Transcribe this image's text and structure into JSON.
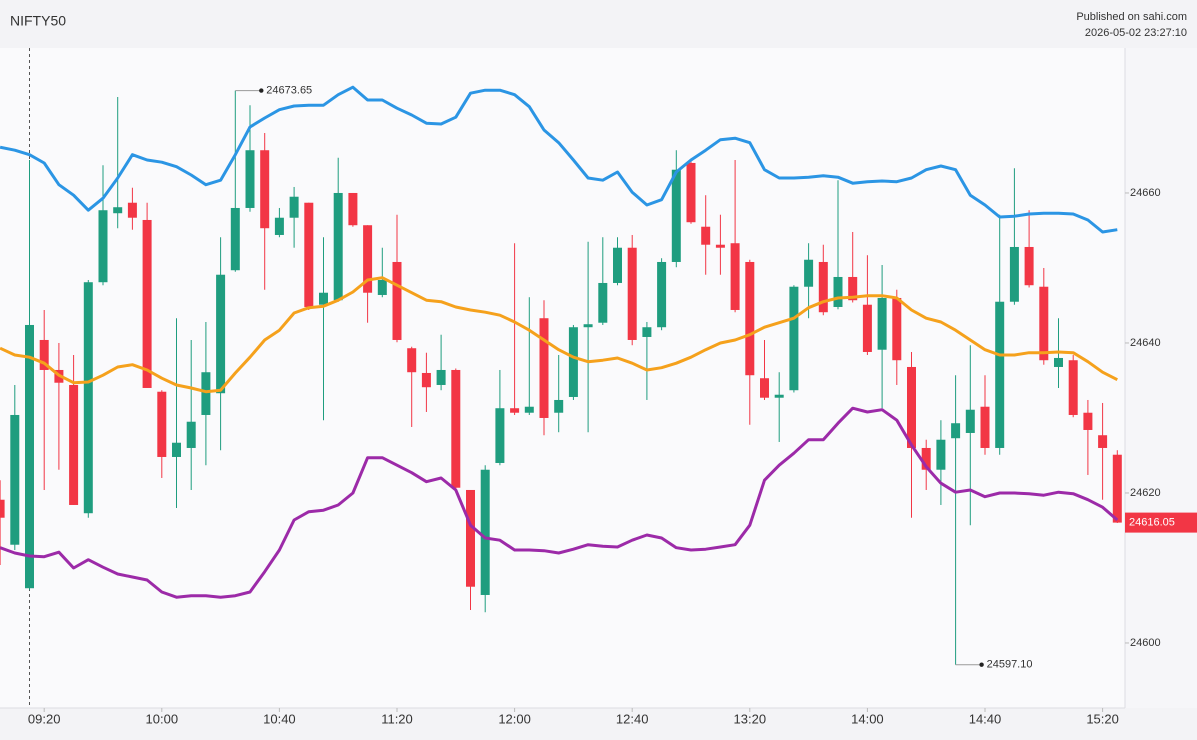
{
  "header": {
    "symbol": "NIFTY50",
    "publisher": "Published on sahi.com",
    "timestamp": "2026-05-02 23:27:10"
  },
  "chart_data": {
    "type": "candlestick",
    "categories": [
      null,
      null,
      null,
      "09:20",
      null,
      null,
      null,
      null,
      null,
      null,
      null,
      "10:00",
      null,
      null,
      null,
      null,
      null,
      null,
      null,
      "10:40",
      null,
      null,
      null,
      null,
      null,
      null,
      null,
      "11:20",
      null,
      null,
      null,
      null,
      null,
      null,
      null,
      "12:00",
      null,
      null,
      null,
      null,
      null,
      null,
      null,
      "12:40",
      null,
      null,
      null,
      null,
      null,
      null,
      null,
      "13:20",
      null,
      null,
      null,
      null,
      null,
      null,
      null,
      "14:00",
      null,
      null,
      null,
      null,
      null,
      null,
      null,
      "14:40",
      null,
      null,
      null,
      null,
      null,
      null,
      null,
      "15:20",
      null
    ],
    "open": [
      24619.1,
      24613.1,
      24607.3,
      24640.4,
      24636.4,
      24634.4,
      24617.3,
      24648.1,
      24657.3,
      24658.7,
      24656.4,
      24633.5,
      24624.8,
      24626.0,
      24630.4,
      24633.3,
      24649.7,
      24658.0,
      24665.7,
      24654.4,
      24656.7,
      24658.7,
      24645.1,
      24645.7,
      24660.0,
      24655.7,
      24646.4,
      24650.8,
      24639.3,
      24636.0,
      24634.4,
      24636.4,
      24620.4,
      24606.4,
      24624.0,
      24631.3,
      24630.7,
      24643.3,
      24630.7,
      24632.8,
      24642.1,
      24642.7,
      24648.0,
      24652.7,
      24640.8,
      24642.1,
      24650.8,
      24664.0,
      24655.5,
      24653.1,
      24653.3,
      24650.8,
      24635.3,
      24632.7,
      24633.7,
      24647.5,
      24650.8,
      24644.8,
      24648.8,
      24645.1,
      24639.1,
      24646.0,
      24636.8,
      24626.0,
      24623.1,
      24627.3,
      24628.0,
      24631.5,
      24626.0,
      24645.5,
      24652.8,
      24647.5,
      24636.8,
      24637.7,
      24630.7,
      24627.7,
      24625.1
    ],
    "high": [
      24621.7,
      24634.4,
      24664.4,
      24644.4,
      24640.0,
      24638.4,
      24648.4,
      24663.7,
      24672.8,
      24660.7,
      24658.7,
      24633.7,
      24643.3,
      24640.4,
      24642.8,
      24654.1,
      24673.65,
      24671.7,
      24668.0,
      24658.0,
      24660.8,
      24658.7,
      24654.1,
      24664.7,
      24660.0,
      24655.7,
      24652.7,
      24657.1,
      24639.5,
      24638.7,
      24641.1,
      24636.6,
      24620.4,
      24623.7,
      24636.4,
      24653.3,
      24646.1,
      24645.7,
      24638.4,
      24642.4,
      24653.5,
      24654.1,
      24654.1,
      24654.4,
      24642.8,
      24651.3,
      24665.7,
      24664.4,
      24659.7,
      24657.1,
      24664.4,
      24651.1,
      24640.4,
      24636.1,
      24647.7,
      24653.3,
      24653.1,
      24661.7,
      24654.8,
      24651.7,
      24650.4,
      24647.1,
      24638.8,
      24627.1,
      24629.7,
      24635.7,
      24639.7,
      24635.7,
      24657.1,
      24663.3,
      24657.7,
      24650.0,
      24643.3,
      24638.4,
      24632.4,
      24632.0,
      24625.7
    ],
    "low": [
      24610.4,
      24612.4,
      24607.1,
      24620.4,
      24623.1,
      24618.4,
      24616.7,
      24647.7,
      24655.3,
      24655.1,
      24634.0,
      24622.0,
      24618.0,
      24620.4,
      24623.7,
      24625.7,
      24649.5,
      24657.5,
      24647.1,
      24654.1,
      24652.7,
      24644.4,
      24629.7,
      24645.5,
      24655.5,
      24642.7,
      24646.1,
      24640.1,
      24628.8,
      24630.8,
      24633.7,
      24620.4,
      24604.4,
      24604.1,
      24623.7,
      24630.4,
      24630.4,
      24627.7,
      24628.1,
      24632.4,
      24628.1,
      24642.4,
      24647.7,
      24639.7,
      24632.4,
      24641.7,
      24650.1,
      24655.9,
      24649.1,
      24649.1,
      24644.1,
      24629.1,
      24632.4,
      24626.8,
      24633.4,
      24643.3,
      24643.7,
      24644.5,
      24645.4,
      24638.4,
      24631.3,
      24634.4,
      24616.7,
      24620.4,
      24618.4,
      24597.1,
      24615.7,
      24625.1,
      24625.1,
      24645.1,
      24647.4,
      24637.1,
      24634.0,
      24630.1,
      24622.4,
      24619.1,
      24616.0
    ],
    "close": [
      24616.7,
      24630.4,
      24642.4,
      24636.4,
      24634.7,
      24618.4,
      24648.1,
      24657.7,
      24658.1,
      24656.7,
      24634.0,
      24624.8,
      24626.7,
      24629.5,
      24636.1,
      24649.1,
      24658.0,
      24665.7,
      24655.3,
      24656.7,
      24659.5,
      24644.8,
      24646.7,
      24660.0,
      24655.7,
      24646.7,
      24648.4,
      24640.4,
      24636.1,
      24634.1,
      24636.4,
      24620.7,
      24607.5,
      24623.1,
      24631.3,
      24630.7,
      24631.5,
      24630.0,
      24632.4,
      24642.1,
      24642.5,
      24648.0,
      24652.7,
      24640.4,
      24642.1,
      24650.8,
      24663.1,
      24656.1,
      24653.1,
      24652.7,
      24644.4,
      24635.7,
      24632.7,
      24633.1,
      24647.5,
      24651.1,
      24644.1,
      24648.8,
      24645.7,
      24638.8,
      24646.0,
      24637.7,
      24626.0,
      24623.1,
      24627.1,
      24629.3,
      24631.1,
      24626.0,
      24645.5,
      24652.8,
      24647.7,
      24637.7,
      24638.0,
      24630.4,
      24628.4,
      24626.0,
      24616.05
    ],
    "up_color": "#1f9d7f",
    "down_color": "#f23645",
    "series": [
      {
        "name": "Upper Band",
        "color": "#2b95e4",
        "values": [
          24666.1,
          24665.7,
          24665.1,
          24664.0,
          24661.1,
          24659.7,
          24657.7,
          24659.3,
          24662.0,
          24665.1,
          24664.4,
          24664.1,
          24663.5,
          24662.4,
          24661.1,
          24661.7,
          24665.1,
          24668.8,
          24670.0,
          24671.1,
          24671.6,
          24671.7,
          24671.7,
          24673.1,
          24674.1,
          24672.4,
          24672.4,
          24671.3,
          24670.4,
          24669.3,
          24669.2,
          24670.1,
          24673.3,
          24673.7,
          24673.7,
          24673.1,
          24671.5,
          24668.4,
          24666.7,
          24664.4,
          24662.0,
          24661.7,
          24662.8,
          24660.1,
          24658.4,
          24659.1,
          24662.8,
          24664.4,
          24665.7,
          24667.1,
          24667.3,
          24666.7,
          24663.1,
          24662.0,
          24662.0,
          24662.1,
          24662.3,
          24662.1,
          24661.3,
          24661.5,
          24661.6,
          24661.5,
          24662.0,
          24663.1,
          24663.6,
          24663.1,
          24659.7,
          24658.4,
          24656.8,
          24656.9,
          24657.2,
          24657.3,
          24657.3,
          24657.2,
          24656.4,
          24654.8,
          24655.1
        ]
      },
      {
        "name": "Middle Band",
        "color": "#f5a11c",
        "values": [
          24639.3,
          24638.4,
          24638.1,
          24637.3,
          24635.7,
          24634.7,
          24634.8,
          24635.7,
          24636.8,
          24637.1,
          24636.4,
          24635.3,
          24634.4,
          24634.0,
          24633.5,
          24633.7,
          24636.0,
          24638.1,
          24640.4,
          24641.7,
          24644.0,
          24644.7,
          24644.9,
          24645.7,
          24646.8,
          24648.4,
          24648.7,
          24647.7,
          24646.7,
          24645.7,
          24645.5,
          24644.8,
          24644.4,
          24644.1,
          24643.7,
          24642.8,
          24641.7,
          24640.4,
          24639.1,
          24638.1,
          24637.5,
          24637.7,
          24638.0,
          24637.3,
          24636.4,
          24636.7,
          24637.3,
          24638.1,
          24639.1,
          24640.0,
          24640.4,
          24641.1,
          24642.1,
          24642.7,
          24643.3,
          24644.7,
          24645.5,
          24646.0,
          24646.1,
          24646.3,
          24646.3,
          24646.0,
          24644.4,
          24643.3,
          24642.8,
          24641.7,
          24640.4,
          24639.1,
          24638.4,
          24638.4,
          24638.7,
          24638.7,
          24638.8,
          24638.7,
          24637.5,
          24636.1,
          24635.1
        ]
      },
      {
        "name": "Lower Band",
        "color": "#9c2aa8",
        "values": [
          24612.7,
          24612.0,
          24611.6,
          24611.5,
          24612.1,
          24610.0,
          24611.1,
          24610.1,
          24609.2,
          24608.8,
          24608.4,
          24606.8,
          24606.1,
          24606.3,
          24606.3,
          24606.1,
          24606.3,
          24606.8,
          24609.5,
          24612.4,
          24616.4,
          24617.5,
          24617.7,
          24618.4,
          24620.0,
          24624.7,
          24624.7,
          24623.7,
          24622.7,
          24621.5,
          24622.0,
          24620.4,
          24615.7,
          24614.0,
          24613.7,
          24612.4,
          24612.4,
          24612.3,
          24612.0,
          24612.5,
          24613.1,
          24612.9,
          24612.8,
          24613.7,
          24614.4,
          24614.0,
          24612.7,
          24612.4,
          24612.5,
          24612.8,
          24613.1,
          24615.7,
          24621.7,
          24623.7,
          24625.3,
          24627.1,
          24627.1,
          24629.3,
          24631.3,
          24630.8,
          24631.1,
          24629.7,
          24626.4,
          24623.5,
          24621.3,
          24620.1,
          24620.4,
          24619.5,
          24620.0,
          24620.0,
          24619.9,
          24619.7,
          24620.1,
          24619.9,
          24619.1,
          24618.1,
          24616.4
        ]
      }
    ],
    "annotations": [
      {
        "label": "24673.65",
        "value": 24673.65
      },
      {
        "label": "24597.10",
        "value": 24597.1
      }
    ],
    "last_price": {
      "value": 24616.05,
      "label": "24616.05"
    },
    "ylim": [
      24591.33,
      24679.33
    ],
    "yticks": [
      24600,
      24620,
      24640,
      24660
    ]
  }
}
